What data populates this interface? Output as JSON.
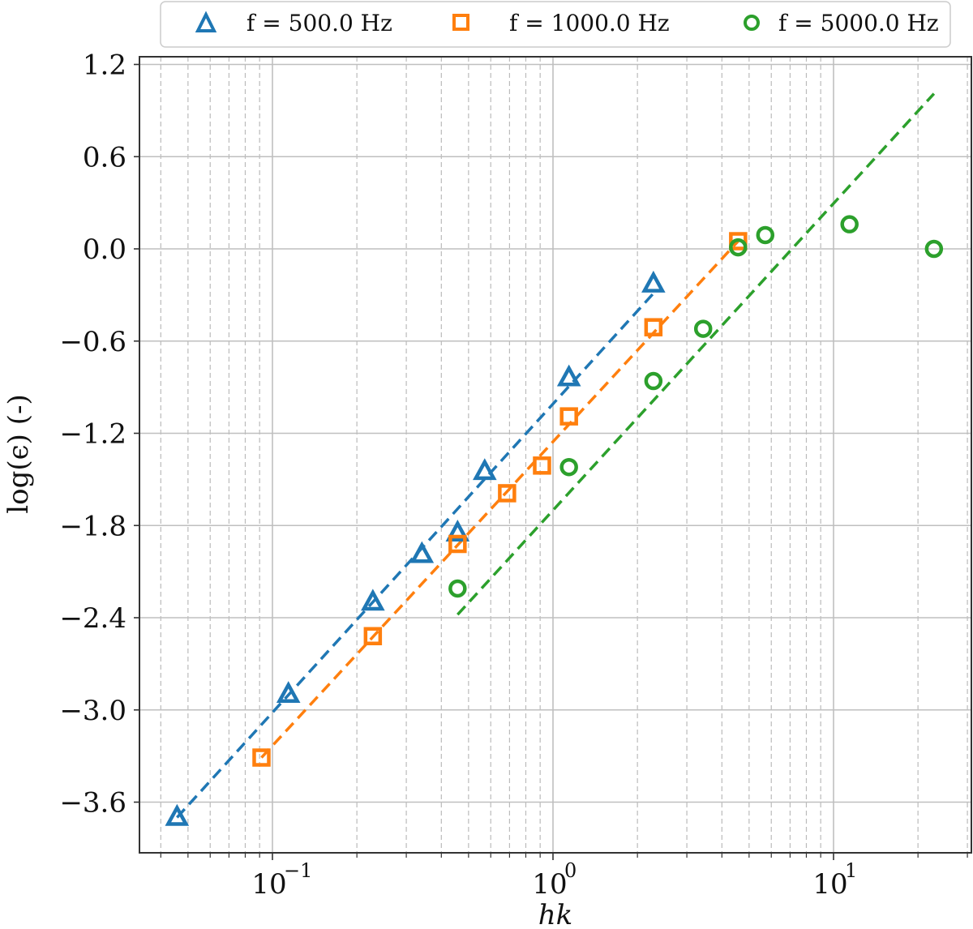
{
  "chart_data": {
    "type": "scatter",
    "title": "",
    "xlabel": "hk",
    "ylabel": "log(ϵ) (-)",
    "xscale": "log",
    "xlim": [
      0.038,
      35
    ],
    "ylim": [
      -3.79,
      1.26
    ],
    "x_ticks": [
      {
        "value": 0.1,
        "label": "10",
        "exp": "−1"
      },
      {
        "value": 1,
        "label": "10",
        "exp": "0"
      },
      {
        "value": 10,
        "label": "10",
        "exp": "1"
      }
    ],
    "y_ticks": [
      {
        "value": 1.2,
        "label": "1.2"
      },
      {
        "value": 0.6,
        "label": "0.6"
      },
      {
        "value": 0.0,
        "label": "0.0"
      },
      {
        "value": -0.6,
        "label": "−0.6"
      },
      {
        "value": -1.2,
        "label": "−1.2"
      },
      {
        "value": -1.8,
        "label": "−1.8"
      },
      {
        "value": -2.4,
        "label": "−2.4"
      },
      {
        "value": -3.0,
        "label": "−3.0"
      },
      {
        "value": -3.6,
        "label": "−3.6"
      }
    ],
    "grid": {
      "major": true,
      "minor_x": true,
      "major_style": "solid",
      "minor_style": "dashed"
    },
    "legend_position": "top (above plot, right-aligned)",
    "series": [
      {
        "name": "f = 500.0 Hz",
        "marker": "triangle",
        "color": "#1f77b4",
        "x": [
          0.0457,
          0.114,
          0.228,
          0.341,
          0.457,
          0.571,
          1.14,
          2.28
        ],
        "y": [
          -3.7,
          -2.9,
          -2.3,
          -1.99,
          -1.85,
          -1.45,
          -0.84,
          -0.23
        ],
        "fit_line": {
          "x": [
            0.0457,
            2.28
          ],
          "y": [
            -3.7,
            -0.29
          ],
          "style": "dashed"
        }
      },
      {
        "name": "f = 1000.0 Hz",
        "marker": "square",
        "color": "#ff7f0e",
        "x": [
          0.0914,
          0.228,
          0.457,
          0.686,
          0.914,
          1.14,
          2.28,
          4.57
        ],
        "y": [
          -3.31,
          -2.52,
          -1.92,
          -1.59,
          -1.41,
          -1.09,
          -0.51,
          0.05
        ],
        "fit_line": {
          "x": [
            0.0914,
            4.57
          ],
          "y": [
            -3.31,
            0.05
          ],
          "style": "dashed"
        }
      },
      {
        "name": "f = 5000.0 Hz",
        "marker": "circle",
        "color": "#2ca02c",
        "x": [
          0.457,
          1.14,
          2.28,
          3.43,
          4.57,
          5.71,
          11.4,
          22.8
        ],
        "y": [
          -2.21,
          -1.42,
          -0.86,
          -0.52,
          0.01,
          0.09,
          0.16,
          0.0
        ],
        "fit_line": {
          "x": [
            0.457,
            22.8
          ],
          "y": [
            -2.38,
            1.01
          ],
          "style": "dashed"
        }
      }
    ]
  },
  "legend": {
    "items": [
      {
        "label": "f = 500.0 Hz",
        "marker": "triangle",
        "color": "#1f77b4"
      },
      {
        "label": "f = 1000.0 Hz",
        "marker": "square",
        "color": "#ff7f0e"
      },
      {
        "label": "f = 5000.0 Hz",
        "marker": "circle",
        "color": "#2ca02c"
      }
    ]
  },
  "axes": {
    "xlabel": "hk",
    "ylabel": "log(ϵ) (-)"
  }
}
